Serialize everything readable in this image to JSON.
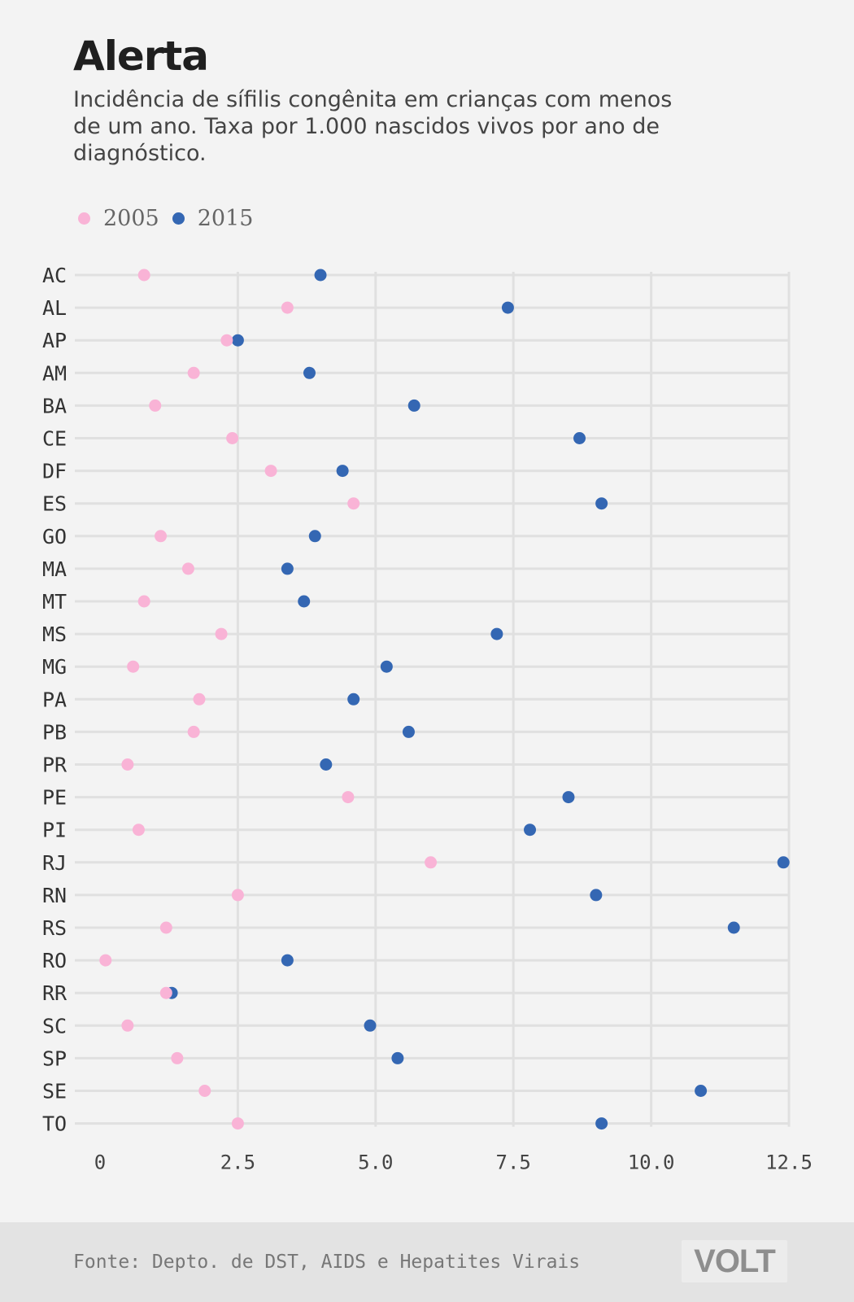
{
  "title": "Alerta",
  "subtitle": "Incidência de sífilis congênita em crianças com menos de um ano. Taxa por 1.000 nascidos vivos por ano de diagnóstico.",
  "legend": [
    {
      "label": "2005",
      "color": "#f9b3d6"
    },
    {
      "label": "2015",
      "color": "#3467b3"
    }
  ],
  "source": "Fonte: Depto. de DST, AIDS e Hepatites Virais",
  "logo": "VOLT",
  "chart_data": {
    "type": "scatter",
    "title": "Alerta",
    "categories": [
      "AC",
      "AL",
      "AP",
      "AM",
      "BA",
      "CE",
      "DF",
      "ES",
      "GO",
      "MA",
      "MT",
      "MS",
      "MG",
      "PA",
      "PB",
      "PR",
      "PE",
      "PI",
      "RJ",
      "RN",
      "RS",
      "RO",
      "RR",
      "SC",
      "SP",
      "SE",
      "TO"
    ],
    "series": [
      {
        "name": "2005",
        "color": "#f9b3d6",
        "values": [
          0.8,
          3.4,
          2.3,
          1.7,
          1.0,
          2.4,
          3.1,
          4.6,
          1.1,
          1.6,
          0.8,
          2.2,
          0.6,
          1.8,
          1.7,
          0.5,
          4.5,
          0.7,
          6.0,
          2.5,
          1.2,
          0.1,
          1.2,
          0.5,
          1.4,
          1.9,
          2.5
        ]
      },
      {
        "name": "2015",
        "color": "#3467b3",
        "values": [
          4.0,
          7.4,
          2.5,
          3.8,
          5.7,
          8.7,
          4.4,
          9.1,
          3.9,
          3.4,
          3.7,
          7.2,
          5.2,
          4.6,
          5.6,
          4.1,
          8.5,
          7.8,
          12.4,
          9.0,
          11.5,
          3.4,
          1.3,
          4.9,
          5.4,
          10.9,
          9.1
        ]
      }
    ],
    "xticks": [
      "0",
      "2.5",
      "5.0",
      "7.5",
      "10.0",
      "12.5"
    ],
    "xlim": [
      0,
      12.5
    ],
    "grid": true,
    "legend_position": "top-left"
  }
}
